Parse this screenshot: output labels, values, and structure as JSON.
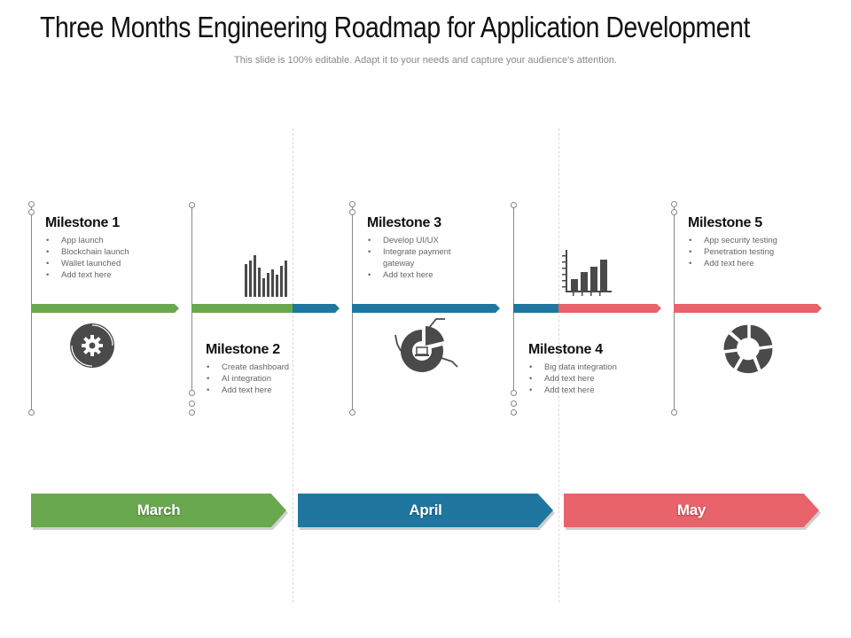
{
  "title": "Three Months Engineering Roadmap for Application Development",
  "subtitle": "This slide is 100% editable. Adapt it to your needs and capture your audience's attention.",
  "colors": {
    "green": "#6aa84f",
    "blue": "#1f77a0",
    "red": "#e8636a",
    "icon": "#4a4a4a"
  },
  "milestones": [
    {
      "title": "Milestone 1",
      "items": [
        "App launch",
        "Blockchain launch",
        "Wallet launched",
        "Add text here"
      ],
      "icon": "gear-icon"
    },
    {
      "title": "Milestone 2",
      "items": [
        "Create dashboard",
        "AI integration",
        "Add text here"
      ],
      "icon": "bar-chart-icon"
    },
    {
      "title": "Milestone 3",
      "items": [
        "Develop UI/UX",
        "Integrate payment gateway",
        "Add text here"
      ],
      "icon": "laptop-donut-icon"
    },
    {
      "title": "Milestone 4",
      "items": [
        "Big data integration",
        "Add text here",
        "Add text here"
      ],
      "icon": "growth-chart-icon"
    },
    {
      "title": "Milestone 5",
      "items": [
        "App security testing",
        "Penetration testing",
        "Add text here"
      ],
      "icon": "donut-icon"
    }
  ],
  "months": [
    "March",
    "April",
    "May"
  ]
}
